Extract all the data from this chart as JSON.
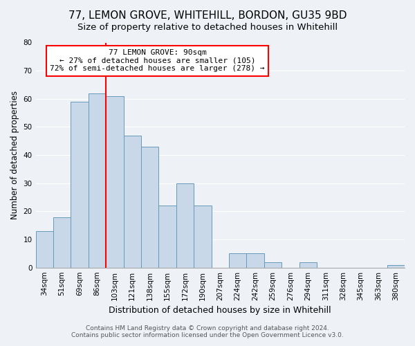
{
  "title": "77, LEMON GROVE, WHITEHILL, BORDON, GU35 9BD",
  "subtitle": "Size of property relative to detached houses in Whitehill",
  "xlabel": "Distribution of detached houses by size in Whitehill",
  "ylabel": "Number of detached properties",
  "categories": [
    "34sqm",
    "51sqm",
    "69sqm",
    "86sqm",
    "103sqm",
    "121sqm",
    "138sqm",
    "155sqm",
    "172sqm",
    "190sqm",
    "207sqm",
    "224sqm",
    "242sqm",
    "259sqm",
    "276sqm",
    "294sqm",
    "311sqm",
    "328sqm",
    "345sqm",
    "363sqm",
    "380sqm"
  ],
  "values": [
    13,
    18,
    59,
    62,
    61,
    47,
    43,
    22,
    30,
    22,
    0,
    5,
    5,
    2,
    0,
    2,
    0,
    0,
    0,
    0,
    1
  ],
  "bar_color": "#c8d8e8",
  "bar_edge_color": "#6699bb",
  "vline_x": 3.5,
  "vline_color": "red",
  "annotation_line1": "77 LEMON GROVE: 90sqm",
  "annotation_line2": "← 27% of detached houses are smaller (105)",
  "annotation_line3": "72% of semi-detached houses are larger (278) →",
  "annotation_box_color": "white",
  "annotation_box_edge": "red",
  "ylim": [
    0,
    80
  ],
  "yticks": [
    0,
    10,
    20,
    30,
    40,
    50,
    60,
    70,
    80
  ],
  "background_color": "#eef2f7",
  "grid_color": "#ffffff",
  "footer_line1": "Contains HM Land Registry data © Crown copyright and database right 2024.",
  "footer_line2": "Contains public sector information licensed under the Open Government Licence v3.0.",
  "title_fontsize": 11,
  "subtitle_fontsize": 9.5,
  "ylabel_fontsize": 8.5,
  "xlabel_fontsize": 9,
  "tick_fontsize": 7.5,
  "annotation_fontsize": 8,
  "footer_fontsize": 6.5
}
